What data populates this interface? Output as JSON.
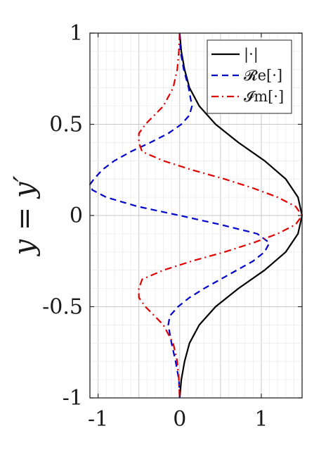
{
  "chart_data": {
    "type": "line",
    "orientation": "y-vertical",
    "title": "",
    "xlabel": "",
    "ylabel": "y = y′",
    "xlim": [
      -1.1,
      1.5
    ],
    "ylim": [
      -1,
      1
    ],
    "x_ticks": [
      -1,
      0,
      1
    ],
    "x_tick_labels": [
      "-1",
      "0",
      "1"
    ],
    "y_ticks": [
      -1,
      -0.5,
      0,
      0.5,
      1
    ],
    "y_tick_labels": [
      "-1",
      "-0.5",
      "0",
      "0.5",
      "1"
    ],
    "grid": "major and minor",
    "legend_position": "top-right",
    "series": [
      {
        "name": "|·|",
        "color": "#000000",
        "style": "solid",
        "points": [
          {
            "y": 1.0,
            "x": 0.0
          },
          {
            "y": 0.9,
            "x": 0.02
          },
          {
            "y": 0.8,
            "x": 0.06
          },
          {
            "y": 0.7,
            "x": 0.12
          },
          {
            "y": 0.6,
            "x": 0.24
          },
          {
            "y": 0.5,
            "x": 0.44
          },
          {
            "y": 0.4,
            "x": 0.72
          },
          {
            "y": 0.3,
            "x": 1.04
          },
          {
            "y": 0.2,
            "x": 1.3
          },
          {
            "y": 0.1,
            "x": 1.45
          },
          {
            "y": 0.0,
            "x": 1.5
          },
          {
            "y": -0.1,
            "x": 1.45
          },
          {
            "y": -0.2,
            "x": 1.3
          },
          {
            "y": -0.3,
            "x": 1.04
          },
          {
            "y": -0.4,
            "x": 0.72
          },
          {
            "y": -0.5,
            "x": 0.44
          },
          {
            "y": -0.6,
            "x": 0.24
          },
          {
            "y": -0.7,
            "x": 0.12
          },
          {
            "y": -0.8,
            "x": 0.06
          },
          {
            "y": -0.9,
            "x": 0.02
          },
          {
            "y": -1.0,
            "x": 0.0
          }
        ]
      },
      {
        "name": "𝓡e[·]",
        "color": "#0000cc",
        "style": "dashed",
        "points": [
          {
            "y": 1.0,
            "x": 0.0
          },
          {
            "y": 0.9,
            "x": 0.01
          },
          {
            "y": 0.8,
            "x": 0.05
          },
          {
            "y": 0.7,
            "x": 0.11
          },
          {
            "y": 0.6,
            "x": 0.15
          },
          {
            "y": 0.55,
            "x": 0.12
          },
          {
            "y": 0.5,
            "x": 0.02
          },
          {
            "y": 0.45,
            "x": -0.14
          },
          {
            "y": 0.4,
            "x": -0.36
          },
          {
            "y": 0.35,
            "x": -0.6
          },
          {
            "y": 0.3,
            "x": -0.8
          },
          {
            "y": 0.25,
            "x": -0.95
          },
          {
            "y": 0.2,
            "x": -1.05
          },
          {
            "y": 0.17,
            "x": -1.1
          },
          {
            "y": 0.14,
            "x": -1.07
          },
          {
            "y": 0.1,
            "x": -0.9
          },
          {
            "y": 0.05,
            "x": -0.52
          },
          {
            "y": 0.0,
            "x": 0.0
          },
          {
            "y": -0.05,
            "x": 0.5
          },
          {
            "y": -0.1,
            "x": 0.95
          },
          {
            "y": -0.15,
            "x": 1.1
          },
          {
            "y": -0.2,
            "x": 1.04
          },
          {
            "y": -0.25,
            "x": 0.9
          },
          {
            "y": -0.3,
            "x": 0.7
          },
          {
            "y": -0.35,
            "x": 0.5
          },
          {
            "y": -0.4,
            "x": 0.3
          },
          {
            "y": -0.45,
            "x": 0.12
          },
          {
            "y": -0.5,
            "x": -0.02
          },
          {
            "y": -0.55,
            "x": -0.12
          },
          {
            "y": -0.6,
            "x": -0.14
          },
          {
            "y": -0.7,
            "x": -0.1
          },
          {
            "y": -0.8,
            "x": -0.05
          },
          {
            "y": -0.9,
            "x": -0.01
          },
          {
            "y": -1.0,
            "x": 0.0
          }
        ]
      },
      {
        "name": "𝓘m[·]",
        "color": "#e00000",
        "style": "dash-dot",
        "points": [
          {
            "y": 1.0,
            "x": 0.0
          },
          {
            "y": 0.9,
            "x": -0.01
          },
          {
            "y": 0.8,
            "x": -0.03
          },
          {
            "y": 0.7,
            "x": -0.08
          },
          {
            "y": 0.6,
            "x": -0.2
          },
          {
            "y": 0.5,
            "x": -0.42
          },
          {
            "y": 0.45,
            "x": -0.5
          },
          {
            "y": 0.4,
            "x": -0.5
          },
          {
            "y": 0.35,
            "x": -0.46
          },
          {
            "y": 0.3,
            "x": -0.2
          },
          {
            "y": 0.25,
            "x": 0.15
          },
          {
            "y": 0.2,
            "x": 0.55
          },
          {
            "y": 0.15,
            "x": 0.9
          },
          {
            "y": 0.1,
            "x": 1.2
          },
          {
            "y": 0.05,
            "x": 1.42
          },
          {
            "y": 0.0,
            "x": 1.5
          },
          {
            "y": -0.05,
            "x": 1.42
          },
          {
            "y": -0.1,
            "x": 1.2
          },
          {
            "y": -0.15,
            "x": 0.9
          },
          {
            "y": -0.2,
            "x": 0.55
          },
          {
            "y": -0.25,
            "x": 0.15
          },
          {
            "y": -0.3,
            "x": -0.2
          },
          {
            "y": -0.35,
            "x": -0.46
          },
          {
            "y": -0.4,
            "x": -0.5
          },
          {
            "y": -0.45,
            "x": -0.5
          },
          {
            "y": -0.5,
            "x": -0.42
          },
          {
            "y": -0.6,
            "x": -0.2
          },
          {
            "y": -0.7,
            "x": -0.08
          },
          {
            "y": -0.8,
            "x": -0.03
          },
          {
            "y": -0.9,
            "x": -0.01
          },
          {
            "y": -1.0,
            "x": 0.0
          }
        ]
      }
    ]
  }
}
